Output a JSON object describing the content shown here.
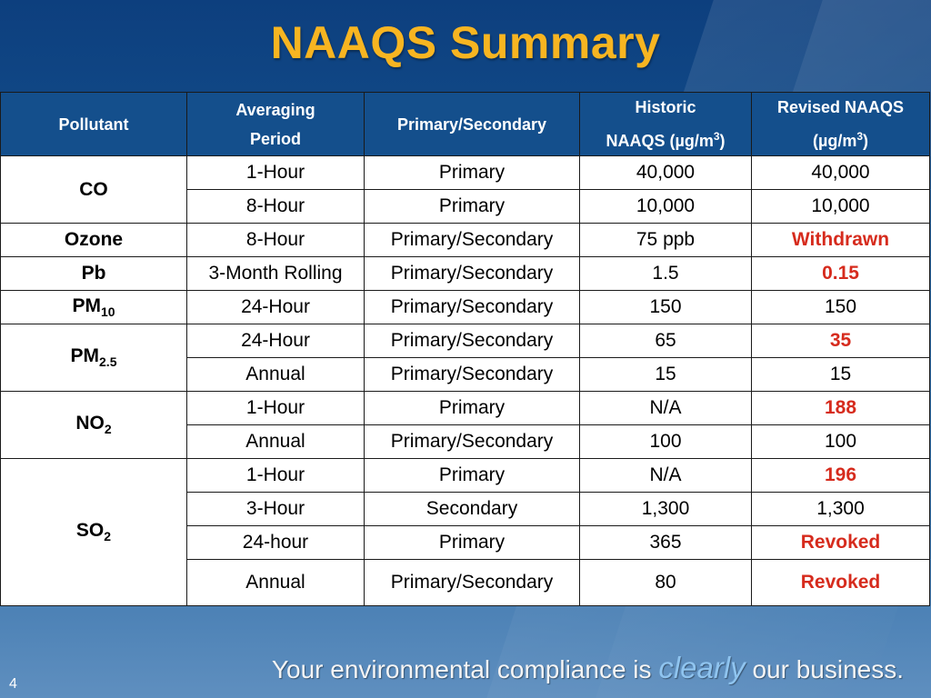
{
  "title": "NAAQS Summary",
  "headers": {
    "pollutant": "Pollutant",
    "period_l1": "Averaging",
    "period_l2": "Period",
    "type": "Primary/Secondary",
    "historic_l1": "Historic",
    "historic_l2": "NAAQS (µg/m",
    "historic_sup": "3",
    "historic_end": ")",
    "revised_l1": "Revised NAAQS",
    "revised_l2": "(µg/m",
    "revised_sup": "3",
    "revised_end": ")"
  },
  "pollutants": {
    "co": "CO",
    "ozone": "Ozone",
    "pb": "Pb",
    "pm10_base": "PM",
    "pm10_sub": "10",
    "pm25_base": "PM",
    "pm25_sub": "2.5",
    "no2_base": "NO",
    "no2_sub": "2",
    "so2_base": "SO",
    "so2_sub": "2"
  },
  "rows": [
    {
      "period": "1-Hour",
      "type": "Primary",
      "historic": "40,000",
      "revised": "40,000"
    },
    {
      "period": "8-Hour",
      "type": "Primary",
      "historic": "10,000",
      "revised": "10,000"
    },
    {
      "period": "8-Hour",
      "type": "Primary/Secondary",
      "historic": "75 ppb",
      "revised": "Withdrawn"
    },
    {
      "period": "3-Month Rolling",
      "type": "Primary/Secondary",
      "historic": "1.5",
      "revised": "0.15"
    },
    {
      "period": "24-Hour",
      "type": "Primary/Secondary",
      "historic": "150",
      "revised": "150"
    },
    {
      "period": "24-Hour",
      "type": "Primary/Secondary",
      "historic": "65",
      "revised": "35"
    },
    {
      "period": "Annual",
      "type": "Primary/Secondary",
      "historic": "15",
      "revised": "15"
    },
    {
      "period": "1-Hour",
      "type": "Primary",
      "historic": "N/A",
      "revised": "188"
    },
    {
      "period": "Annual",
      "type": "Primary/Secondary",
      "historic": "100",
      "revised": "100"
    },
    {
      "period": "1-Hour",
      "type": "Primary",
      "historic": "N/A",
      "revised": "196"
    },
    {
      "period": "3-Hour",
      "type": "Secondary",
      "historic": "1,300",
      "revised": "1,300"
    },
    {
      "period": "24-hour",
      "type": "Primary",
      "historic": "365",
      "revised": "Revoked"
    },
    {
      "period": "Annual",
      "type": "Primary/Secondary",
      "historic": "80",
      "revised": "Revoked"
    }
  ],
  "colors": {
    "title": "#f7b521",
    "header_bg": "#144f8c",
    "highlight_red": "#d62b1d"
  },
  "footer": {
    "slogan_pre": "Your environmental compliance is ",
    "slogan_em": "clearly",
    "slogan_post": " our business.",
    "page_number": "4"
  }
}
